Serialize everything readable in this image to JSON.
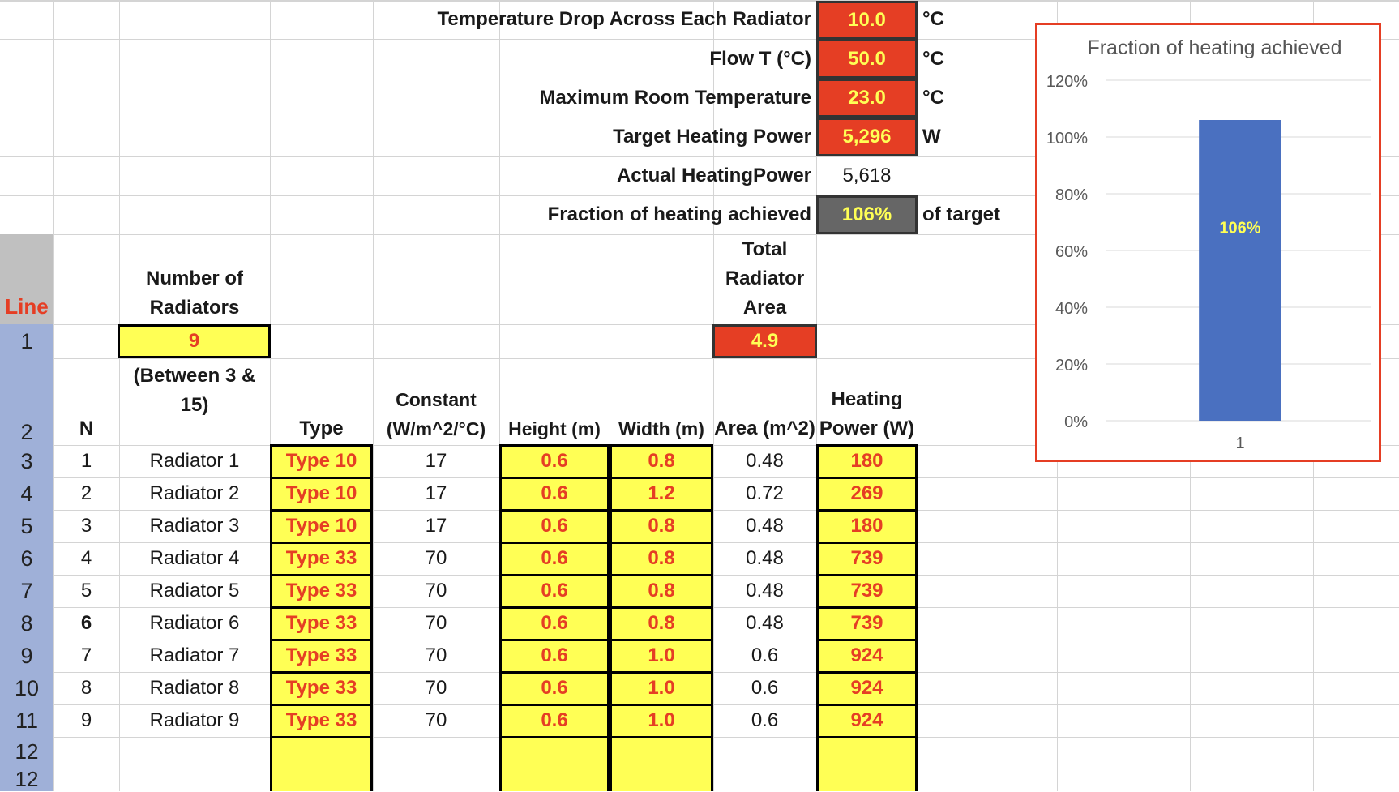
{
  "params": [
    {
      "label": "Temperature Drop Across Each Radiator",
      "value": "10.0",
      "unit": "°C",
      "style": "red"
    },
    {
      "label": "Flow T (°C)",
      "value": "50.0",
      "unit": "°C",
      "style": "red"
    },
    {
      "label": "Maximum Room Temperature",
      "value": "23.0",
      "unit": "°C",
      "style": "red"
    },
    {
      "label": "Target Heating Power",
      "value": "5,296",
      "unit": "W",
      "style": "red"
    },
    {
      "label": "Actual HeatingPower",
      "value": "5,618",
      "unit": "",
      "style": "plain"
    },
    {
      "label": "Fraction of heating achieved",
      "value": "106%",
      "unit": "of target",
      "style": "gray"
    }
  ],
  "line_label": "Line",
  "row_numbers": [
    "1",
    "2",
    "3",
    "4",
    "5",
    "6",
    "7",
    "8",
    "9",
    "10",
    "11",
    "12",
    "12"
  ],
  "num_radiators": {
    "header": "Number of Radiators",
    "value": "9",
    "note": "(Between 3 & 15)"
  },
  "total_area": {
    "header": "Total Radiator Area",
    "value": "4.9"
  },
  "columns": {
    "n": "N",
    "type": "Type",
    "constant": "Constant (W/m^2/°C)",
    "height": "Height (m)",
    "width": "Width (m)",
    "area": "Area (m^2)",
    "power": "Heating Power (W)"
  },
  "radiators": [
    {
      "n": "1",
      "name": "Radiator 1",
      "type": "Type 10",
      "constant": "17",
      "height": "0.6",
      "width": "0.8",
      "area": "0.48",
      "power": "180"
    },
    {
      "n": "2",
      "name": "Radiator 2",
      "type": "Type 10",
      "constant": "17",
      "height": "0.6",
      "width": "1.2",
      "area": "0.72",
      "power": "269"
    },
    {
      "n": "3",
      "name": "Radiator 3",
      "type": "Type 10",
      "constant": "17",
      "height": "0.6",
      "width": "0.8",
      "area": "0.48",
      "power": "180"
    },
    {
      "n": "4",
      "name": "Radiator 4",
      "type": "Type 33",
      "constant": "70",
      "height": "0.6",
      "width": "0.8",
      "area": "0.48",
      "power": "739"
    },
    {
      "n": "5",
      "name": "Radiator 5",
      "type": "Type 33",
      "constant": "70",
      "height": "0.6",
      "width": "0.8",
      "area": "0.48",
      "power": "739"
    },
    {
      "n": "6",
      "name": "Radiator 6",
      "type": "Type 33",
      "constant": "70",
      "height": "0.6",
      "width": "0.8",
      "area": "0.48",
      "power": "739"
    },
    {
      "n": "7",
      "name": "Radiator 7",
      "type": "Type 33",
      "constant": "70",
      "height": "0.6",
      "width": "1.0",
      "area": "0.6",
      "power": "924"
    },
    {
      "n": "8",
      "name": "Radiator 8",
      "type": "Type 33",
      "constant": "70",
      "height": "0.6",
      "width": "1.0",
      "area": "0.6",
      "power": "924"
    },
    {
      "n": "9",
      "name": "Radiator 9",
      "type": "Type 33",
      "constant": "70",
      "height": "0.6",
      "width": "1.0",
      "area": "0.6",
      "power": "924"
    }
  ],
  "colors": {
    "red_cell": "#e53e24",
    "yellow_cell": "#ffff55",
    "gray_cell": "#666666",
    "row_header": "#9fb0d8",
    "bar": "#4a70c0"
  },
  "chart_data": {
    "type": "bar",
    "title": "Fraction of heating achieved",
    "categories": [
      "1"
    ],
    "values": [
      106
    ],
    "data_labels": [
      "106%"
    ],
    "ylim": [
      0,
      120
    ],
    "yticks": [
      "0%",
      "20%",
      "40%",
      "60%",
      "80%",
      "100%",
      "120%"
    ],
    "grid": true,
    "legend": "none"
  }
}
